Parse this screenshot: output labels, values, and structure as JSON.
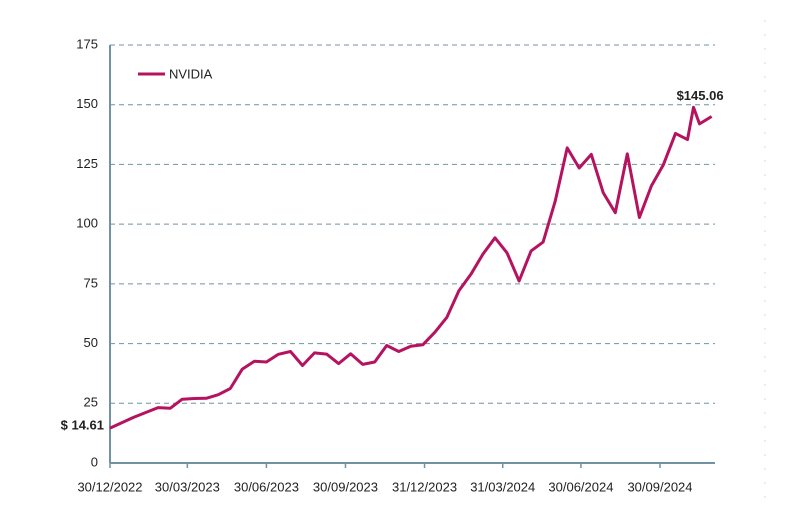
{
  "chart_data": {
    "type": "line",
    "x": [
      "2022-12-30",
      "2023-01-13",
      "2023-01-27",
      "2023-02-10",
      "2023-02-24",
      "2023-03-10",
      "2023-03-24",
      "2023-04-07",
      "2023-04-21",
      "2023-05-05",
      "2023-05-19",
      "2023-06-02",
      "2023-06-16",
      "2023-06-30",
      "2023-07-14",
      "2023-07-28",
      "2023-08-11",
      "2023-08-25",
      "2023-09-08",
      "2023-09-22",
      "2023-10-06",
      "2023-10-20",
      "2023-11-03",
      "2023-11-17",
      "2023-12-01",
      "2023-12-15",
      "2023-12-29",
      "2024-01-12",
      "2024-01-26",
      "2024-02-09",
      "2024-02-23",
      "2024-03-08",
      "2024-03-22",
      "2024-04-05",
      "2024-04-19",
      "2024-05-03",
      "2024-05-17",
      "2024-05-31",
      "2024-06-14",
      "2024-06-28",
      "2024-07-12",
      "2024-07-26",
      "2024-08-09",
      "2024-08-23",
      "2024-09-06",
      "2024-09-20",
      "2024-10-04",
      "2024-10-18",
      "2024-11-01",
      "2024-11-08",
      "2024-11-15",
      "2024-11-29"
    ],
    "series": [
      {
        "name": "NVIDIA",
        "color": "#b5135f",
        "values": [
          14.61,
          16.9,
          19.2,
          21.2,
          23.2,
          22.9,
          26.7,
          27.0,
          27.1,
          28.6,
          31.2,
          39.3,
          42.6,
          42.3,
          45.5,
          46.7,
          40.8,
          46.1,
          45.6,
          41.6,
          45.7,
          41.3,
          42.3,
          49.2,
          46.7,
          48.9,
          49.5,
          54.7,
          61.0,
          72.1,
          79.0,
          87.5,
          94.3,
          88.0,
          76.2,
          88.8,
          92.5,
          109.6,
          131.9,
          123.5,
          129.2,
          113.1,
          104.8,
          129.4,
          102.8,
          116.0,
          124.9,
          138.0,
          135.4,
          148.9,
          141.98,
          145.06
        ]
      }
    ],
    "annotations": [
      "$ 14.61",
      "$145.06"
    ],
    "xlim": [
      "2022-12-30",
      "2024-12-03"
    ],
    "xticks": [
      {
        "value": "2022-12-30",
        "label": "30/12/2022"
      },
      {
        "value": "2023-03-30",
        "label": "30/03/2023"
      },
      {
        "value": "2023-06-30",
        "label": "30/06/2023"
      },
      {
        "value": "2023-09-30",
        "label": "30/09/2023"
      },
      {
        "value": "2023-12-31",
        "label": "31/12/2023"
      },
      {
        "value": "2024-03-31",
        "label": "31/03/2024"
      },
      {
        "value": "2024-06-30",
        "label": "30/06/2024"
      },
      {
        "value": "2024-09-30",
        "label": "30/09/2024"
      }
    ],
    "ylim": [
      0,
      175
    ],
    "yticks": [
      0,
      25,
      50,
      75,
      100,
      125,
      150,
      175
    ],
    "grid": true,
    "legend": "top-left"
  }
}
